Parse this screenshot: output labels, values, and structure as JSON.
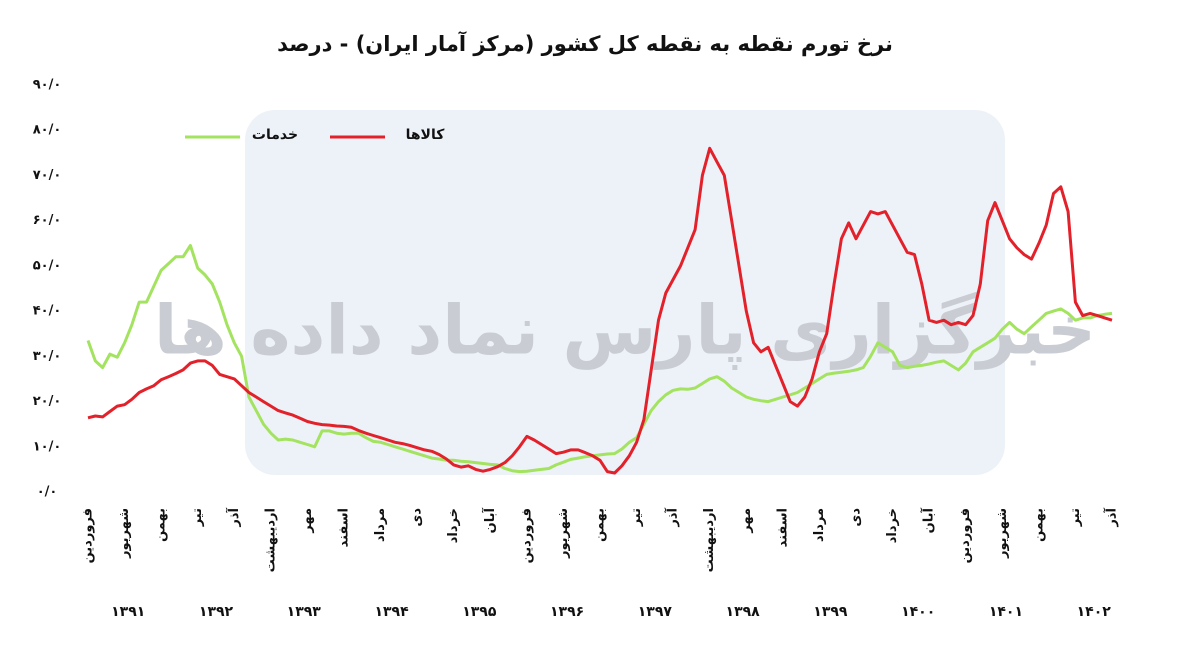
{
  "chart_data": {
    "type": "line",
    "title": "نرخ تورم نقطه به نقطه کل کشور (مرکز آمار ایران) - درصد",
    "watermark": "خبرگزاری پارس نماد داده ها",
    "categories": [
      "فروردین",
      null,
      null,
      null,
      null,
      "شهریور",
      null,
      null,
      null,
      null,
      "بهمن",
      null,
      null,
      null,
      null,
      "تیر",
      null,
      null,
      null,
      null,
      "آذر",
      null,
      null,
      null,
      null,
      "اردیبهشت",
      null,
      null,
      null,
      null,
      "مهر",
      null,
      null,
      null,
      null,
      "اسفند",
      null,
      null,
      null,
      null,
      "مرداد",
      null,
      null,
      null,
      null,
      "دی",
      null,
      null,
      null,
      null,
      "خرداد",
      null,
      null,
      null,
      null,
      "آبان",
      null,
      null,
      null,
      null,
      "فروردین",
      null,
      null,
      null,
      null,
      "شهریور",
      null,
      null,
      null,
      null,
      "بهمن",
      null,
      null,
      null,
      null,
      "تیر",
      null,
      null,
      null,
      null,
      "آذر",
      null,
      null,
      null,
      null,
      "اردیبهشت",
      null,
      null,
      null,
      null,
      "مهر",
      null,
      null,
      null,
      null,
      "اسفند",
      null,
      null,
      null,
      null,
      "مرداد",
      null,
      null,
      null,
      null,
      "دی",
      null,
      null,
      null,
      null,
      "خرداد",
      null,
      null,
      null,
      null,
      "آبان",
      null,
      null,
      null,
      null,
      "فروردین",
      null,
      null,
      null,
      null,
      "شهریور",
      null,
      null,
      null,
      null,
      "بهمن",
      null,
      null,
      null,
      null,
      "تیر",
      null,
      null,
      null,
      null,
      "آذر"
    ],
    "year_labels": [
      "۱۳۹۱",
      "۱۳۹۲",
      "۱۳۹۳",
      "۱۳۹۴",
      "۱۳۹۵",
      "۱۳۹۶",
      "۱۳۹۷",
      "۱۳۹۸",
      "۱۳۹۹",
      "۱۴۰۰",
      "۱۴۰۱",
      "۱۴۰۲"
    ],
    "series": [
      {
        "name": "خدمات",
        "color": "#a3e35f",
        "values": [
          33.5,
          29,
          27.5,
          30.5,
          29.8,
          33,
          37,
          42,
          42,
          45.5,
          49,
          50.5,
          52,
          52,
          54.5,
          49.5,
          48,
          46,
          42,
          37,
          33,
          30,
          21,
          18,
          15,
          13,
          11.5,
          11.7,
          11.5,
          11,
          10.5,
          10,
          13.5,
          13.5,
          13,
          12.8,
          13,
          13,
          12,
          11.2,
          11,
          10.5,
          10,
          9.5,
          9,
          8.5,
          8,
          7.5,
          7.3,
          7,
          7,
          6.8,
          6.7,
          6.5,
          6.3,
          6.1,
          6,
          5.2,
          4.7,
          4.5,
          4.6,
          4.8,
          5,
          5.2,
          6,
          6.6,
          7.2,
          7.5,
          7.8,
          8,
          8.2,
          8.4,
          8.5,
          9.5,
          11,
          12,
          15,
          18,
          20,
          21.5,
          22.5,
          22.8,
          22.7,
          23,
          24,
          25,
          25.5,
          24.5,
          23,
          22,
          21,
          20.5,
          20.2,
          20,
          20.5,
          21,
          21.5,
          22,
          23,
          24,
          25,
          26,
          26.3,
          26.5,
          26.7,
          27,
          27.5,
          30,
          33,
          32,
          31,
          28,
          27.5,
          27.8,
          28,
          28.3,
          28.7,
          29,
          28,
          27,
          28.5,
          31,
          32,
          33,
          34,
          36,
          37.5,
          36,
          35,
          36.5,
          38,
          39.5,
          40,
          40.5,
          39.5,
          38,
          38.5,
          38.5,
          39,
          39.3,
          39.5
        ]
      },
      {
        "name": "کالاها",
        "color": "#e3212b",
        "values": [
          16.4,
          16.8,
          16.6,
          17.8,
          19,
          19.3,
          20.5,
          22,
          22.8,
          23.5,
          24.8,
          25.5,
          26.2,
          27,
          28.5,
          29,
          29,
          28,
          26,
          25.5,
          25,
          23.5,
          22,
          21,
          20,
          19,
          18,
          17.5,
          17,
          16.3,
          15.6,
          15.2,
          14.9,
          14.8,
          14.6,
          14.5,
          14.3,
          13.6,
          13,
          12.5,
          12,
          11.5,
          11,
          10.7,
          10.3,
          9.8,
          9.3,
          9,
          8.3,
          7.3,
          6,
          5.5,
          5.8,
          5,
          4.6,
          5,
          5.6,
          6.5,
          8,
          10,
          12.3,
          11.5,
          10.5,
          9.5,
          8.5,
          8.8,
          9.3,
          9.3,
          8.7,
          8,
          7,
          4.5,
          4.2,
          5.8,
          8,
          11,
          16,
          27,
          38,
          44,
          47,
          50,
          54,
          58,
          70,
          76,
          73,
          70,
          60,
          50,
          40,
          33,
          31,
          32,
          28,
          24,
          20,
          19,
          21,
          25,
          31,
          35,
          46,
          56,
          59.5,
          56,
          59,
          62,
          61.5,
          62,
          59,
          56,
          53,
          52.5,
          46,
          38,
          37.5,
          38,
          37,
          37.5,
          37,
          39,
          46,
          60,
          64,
          60,
          56,
          54,
          52.5,
          51.5,
          55,
          59,
          66,
          67.5,
          62,
          42,
          39,
          39.5,
          39,
          38.5,
          38
        ]
      }
    ],
    "ylim": [
      0,
      90
    ],
    "yticks": [
      {
        "value": 0,
        "label": "۰/۰"
      },
      {
        "value": 10,
        "label": "۱۰/۰"
      },
      {
        "value": 20,
        "label": "۲۰/۰"
      },
      {
        "value": 30,
        "label": "۳۰/۰"
      },
      {
        "value": 40,
        "label": "۴۰/۰"
      },
      {
        "value": 50,
        "label": "۵۰/۰"
      },
      {
        "value": 60,
        "label": "۶۰/۰"
      },
      {
        "value": 70,
        "label": "۷۰/۰"
      },
      {
        "value": 80,
        "label": "۸۰/۰"
      },
      {
        "value": 90,
        "label": "۹۰/۰"
      }
    ]
  }
}
